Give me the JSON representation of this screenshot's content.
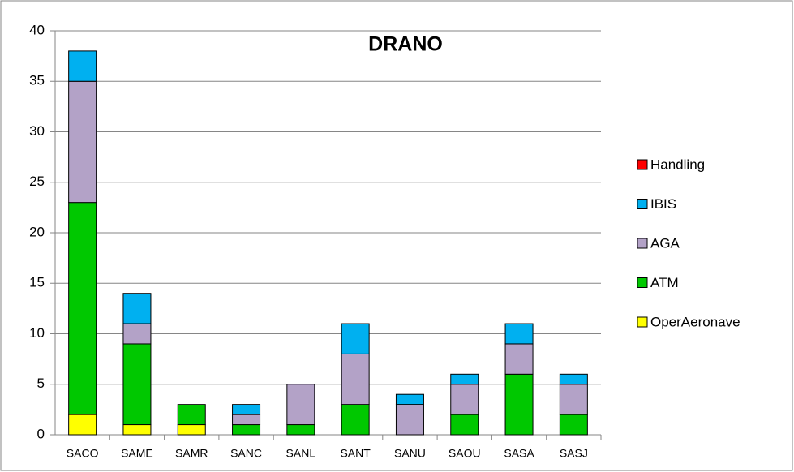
{
  "chart_data": {
    "type": "stacked_bar",
    "title": "DRANO",
    "categories": [
      "SACO",
      "SAME",
      "SAMR",
      "SANC",
      "SANL",
      "SANT",
      "SANU",
      "SAOU",
      "SASA",
      "SASJ"
    ],
    "series": [
      {
        "name": "OperAeronave",
        "color": "#ffff00",
        "values": [
          2,
          1,
          1,
          0,
          0,
          0,
          0,
          0,
          0,
          0
        ]
      },
      {
        "name": "ATM",
        "color": "#00c800",
        "values": [
          21,
          8,
          2,
          1,
          1,
          3,
          0,
          2,
          6,
          2
        ]
      },
      {
        "name": "AGA",
        "color": "#b3a2c7",
        "values": [
          12,
          2,
          0,
          1,
          4,
          5,
          3,
          3,
          3,
          3
        ]
      },
      {
        "name": "IBIS",
        "color": "#00b0f0",
        "values": [
          3,
          3,
          0,
          1,
          0,
          3,
          1,
          1,
          2,
          1
        ]
      },
      {
        "name": "Handling",
        "color": "#ff0000",
        "values": [
          0,
          0,
          0,
          0,
          0,
          0,
          0,
          0,
          0,
          0
        ]
      }
    ],
    "ylim": [
      0,
      40
    ],
    "yticks": [
      0,
      5,
      10,
      15,
      20,
      25,
      30,
      35,
      40
    ],
    "grid": true,
    "legend": "right"
  }
}
